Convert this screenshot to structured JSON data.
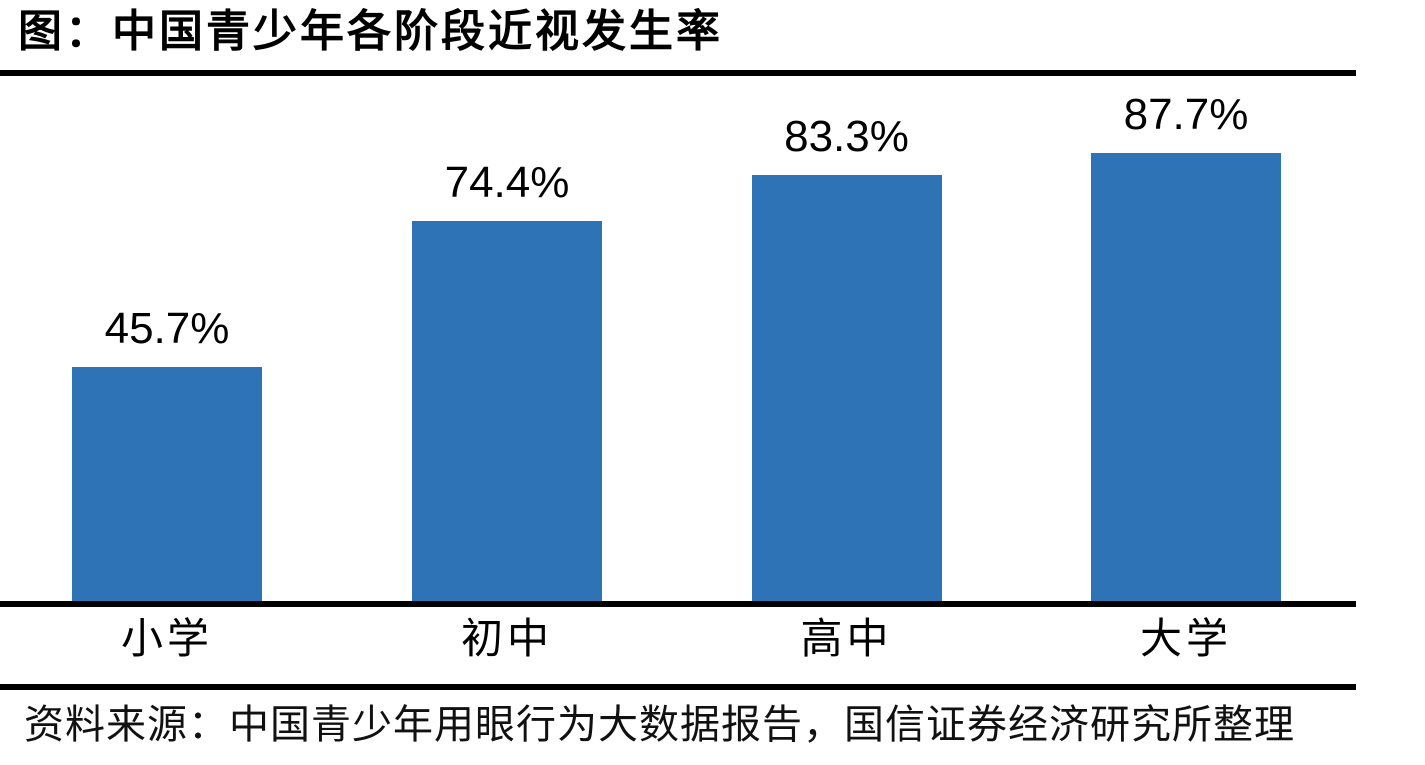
{
  "header": {
    "title": "图：中国青少年各阶段近视发生率"
  },
  "footer": {
    "source": "资料来源：中国青少年用眼行为大数据报告，国信证券经济研究所整理"
  },
  "colors": {
    "bar": "#2E73B5",
    "rule": "#000000",
    "text": "#000000",
    "source_text": "#111111"
  },
  "chart_data": {
    "type": "bar",
    "title": "图：中国青少年各阶段近视发生率",
    "categories": [
      "小学",
      "初中",
      "高中",
      "大学"
    ],
    "values": [
      45.7,
      74.4,
      83.3,
      87.7
    ],
    "data_labels": [
      "45.7%",
      "74.4%",
      "83.3%",
      "87.7%"
    ],
    "xlabel": "",
    "ylabel": "",
    "ylim": [
      0,
      100
    ],
    "grid": false,
    "legend": null,
    "y_axis_visible": false,
    "source_note": "资料来源：中国青少年用眼行为大数据报告，国信证券经济研究所整理"
  }
}
